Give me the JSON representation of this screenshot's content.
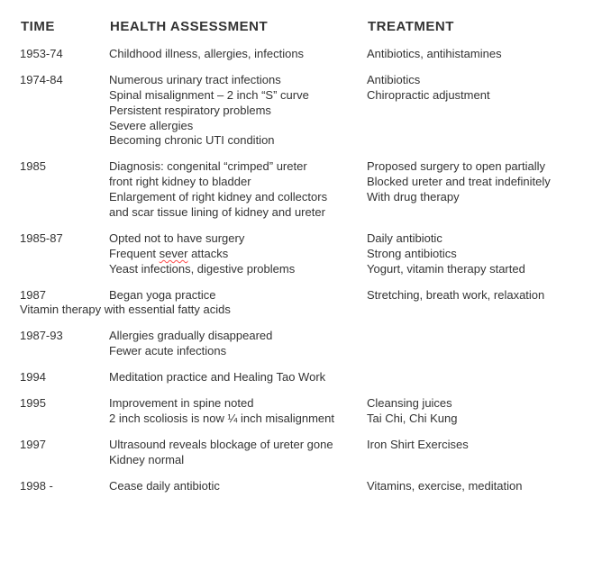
{
  "headers": {
    "time": "TIME",
    "assessment": "HEALTH ASSESSMENT",
    "treatment": "TREATMENT"
  },
  "rows": [
    {
      "time": "1953-74",
      "assessment": "Childhood illness, allergies, infections",
      "treatment": "Antibiotics, antihistamines"
    },
    {
      "time": "1974-84",
      "assessment": "Numerous urinary tract infections\nSpinal misalignment – 2 inch “S” curve\nPersistent respiratory problems\nSevere allergies\nBecoming chronic UTI condition",
      "treatment": "Antibiotics\nChiropractic adjustment"
    },
    {
      "time": "1985",
      "assessment": "Diagnosis: congenital “crimped” ureter\nfront right kidney to bladder\nEnlargement of right kidney and collectors\nand scar tissue lining of kidney and ureter",
      "treatment": "Proposed surgery to open partially\nBlocked ureter and treat indefinitely\nWith drug therapy"
    },
    {
      "time": "1985-87",
      "assessment_parts": [
        "Opted not to have surgery\nFrequent ",
        {
          "spell": "sever"
        },
        " attacks\nYeast infections, digestive problems"
      ],
      "treatment": "Daily antibiotic\nStrong antibiotics\nYogurt, vitamin therapy started"
    },
    {
      "time": "1987",
      "assessment": "Began yoga practice",
      "treatment": "Stretching, breath work, relaxation",
      "full_span": "Vitamin therapy with essential fatty acids"
    },
    {
      "time": "1987-93",
      "assessment": "Allergies gradually disappeared\nFewer acute infections",
      "treatment": ""
    },
    {
      "time": "1994",
      "assessment": "Meditation practice and Healing Tao Work",
      "treatment": ""
    },
    {
      "time": "1995",
      "assessment": "Improvement in spine noted\n2 inch scoliosis is now ¼ inch misalignment",
      "treatment": "Cleansing juices\nTai Chi, Chi Kung"
    },
    {
      "time": "1997",
      "assessment": "Ultrasound reveals blockage of ureter gone\nKidney normal",
      "treatment": "Iron Shirt Exercises"
    },
    {
      "time": "1998 -",
      "assessment": "Cease daily antibiotic",
      "treatment": "Vitamins, exercise, meditation"
    }
  ]
}
